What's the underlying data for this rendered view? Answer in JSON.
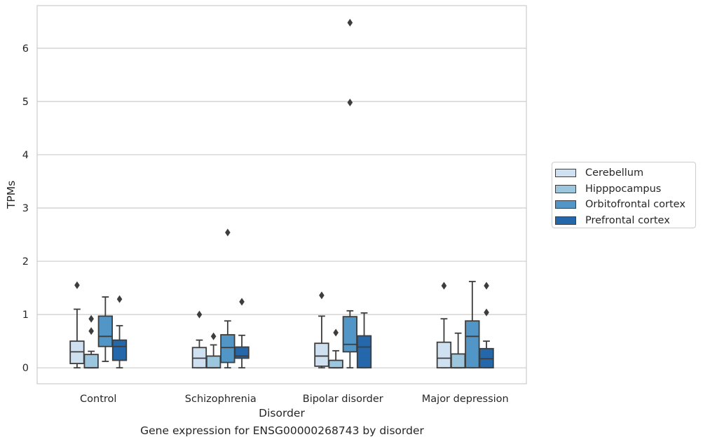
{
  "chart_data": {
    "type": "box",
    "caption": "Gene expression for ENSG00000268743 by disorder",
    "xlabel": "Disorder",
    "ylabel": "TPMs",
    "ylim": [
      -0.3,
      6.8
    ],
    "yticks": [
      0,
      1,
      2,
      3,
      4,
      5,
      6
    ],
    "grid": "horizontal",
    "legend_position": "right",
    "categories": [
      "Control",
      "Schizophrenia",
      "Bipolar disorder",
      "Major depression"
    ],
    "series": [
      {
        "name": "Cerebellum",
        "color": "#cfe0f1",
        "boxes": [
          {
            "whislo": 0.0,
            "q1": 0.08,
            "med": 0.3,
            "q3": 0.5,
            "whishi": 1.1,
            "fliers": [
              1.55
            ]
          },
          {
            "whislo": 0.0,
            "q1": 0.0,
            "med": 0.18,
            "q3": 0.38,
            "whishi": 0.52,
            "fliers": [
              1.0
            ]
          },
          {
            "whislo": 0.0,
            "q1": 0.03,
            "med": 0.22,
            "q3": 0.46,
            "whishi": 0.97,
            "fliers": [
              1.36
            ]
          },
          {
            "whislo": 0.0,
            "q1": 0.0,
            "med": 0.18,
            "q3": 0.48,
            "whishi": 0.92,
            "fliers": [
              1.54
            ]
          }
        ]
      },
      {
        "name": "Hipppocampus",
        "color": "#9cc5de",
        "boxes": [
          {
            "whislo": 0.0,
            "q1": 0.0,
            "med": 0.0,
            "q3": 0.25,
            "whishi": 0.31,
            "fliers": [
              0.69,
              0.92
            ]
          },
          {
            "whislo": 0.0,
            "q1": 0.0,
            "med": 0.0,
            "q3": 0.22,
            "whishi": 0.43,
            "fliers": [
              0.59
            ]
          },
          {
            "whislo": 0.0,
            "q1": 0.0,
            "med": 0.0,
            "q3": 0.14,
            "whishi": 0.32,
            "fliers": [
              0.66
            ]
          },
          {
            "whislo": 0.0,
            "q1": 0.0,
            "med": 0.0,
            "q3": 0.26,
            "whishi": 0.65,
            "fliers": []
          }
        ]
      },
      {
        "name": "Orbitofrontal cortex",
        "color": "#5196c7",
        "boxes": [
          {
            "whislo": 0.12,
            "q1": 0.4,
            "med": 0.59,
            "q3": 0.97,
            "whishi": 1.33,
            "fliers": []
          },
          {
            "whislo": 0.0,
            "q1": 0.1,
            "med": 0.38,
            "q3": 0.62,
            "whishi": 0.88,
            "fliers": [
              2.54
            ]
          },
          {
            "whislo": 0.0,
            "q1": 0.3,
            "med": 0.44,
            "q3": 0.96,
            "whishi": 1.07,
            "fliers": [
              4.98,
              6.48
            ]
          },
          {
            "whislo": 0.0,
            "q1": 0.0,
            "med": 0.59,
            "q3": 0.88,
            "whishi": 1.62,
            "fliers": []
          }
        ]
      },
      {
        "name": "Prefrontal cortex",
        "color": "#2468ab",
        "boxes": [
          {
            "whislo": 0.0,
            "q1": 0.14,
            "med": 0.4,
            "q3": 0.52,
            "whishi": 0.79,
            "fliers": [
              1.29
            ]
          },
          {
            "whislo": 0.0,
            "q1": 0.18,
            "med": 0.22,
            "q3": 0.39,
            "whishi": 0.61,
            "fliers": [
              1.24
            ]
          },
          {
            "whislo": 0.0,
            "q1": 0.0,
            "med": 0.39,
            "q3": 0.6,
            "whishi": 1.03,
            "fliers": []
          },
          {
            "whislo": 0.0,
            "q1": 0.0,
            "med": 0.17,
            "q3": 0.36,
            "whishi": 0.5,
            "fliers": [
              1.04,
              1.54
            ]
          }
        ]
      }
    ]
  }
}
